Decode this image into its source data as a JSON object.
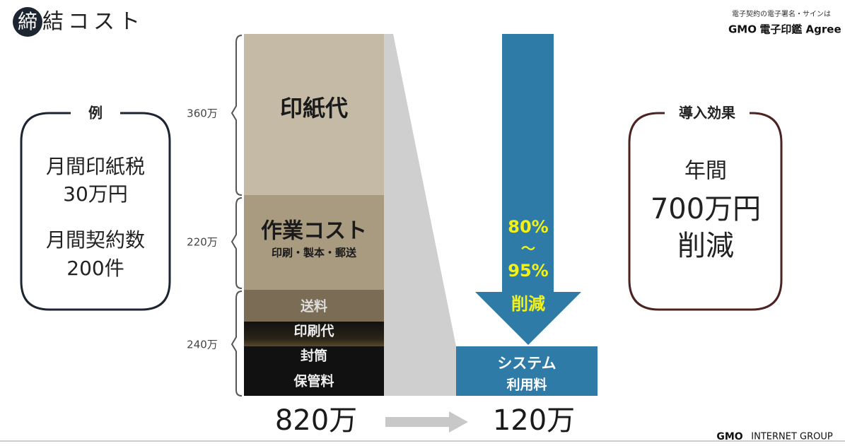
{
  "header": {
    "title_badge": "締",
    "title_rest": "結コスト",
    "logo_tagline": "電子契約の電子署名・サインは",
    "logo_brand": "GMO",
    "logo_product": "電子印鑑 Agree"
  },
  "example_box": {
    "label": "例",
    "lines": [
      "月間印紙税",
      "30万円",
      "月間契約数",
      "200件"
    ]
  },
  "brackets": [
    "360万",
    "220万",
    "240万"
  ],
  "stack": {
    "segments": [
      "印紙代",
      "作業コスト",
      "印刷・製本・郵送",
      "送料",
      "印刷代",
      "封筒",
      "保管料"
    ],
    "total": "820万"
  },
  "reduction_arrow": {
    "lines": [
      "80%",
      "〜",
      "95%",
      "削減"
    ]
  },
  "system_box": {
    "lines": [
      "システム",
      "利用料"
    ],
    "total": "120万"
  },
  "effect_box": {
    "label": "導入効果",
    "lines": [
      "年間",
      "700万円",
      "削減"
    ]
  },
  "footer": {
    "brand": "GMO",
    "group": "INTERNET GROUP"
  }
}
